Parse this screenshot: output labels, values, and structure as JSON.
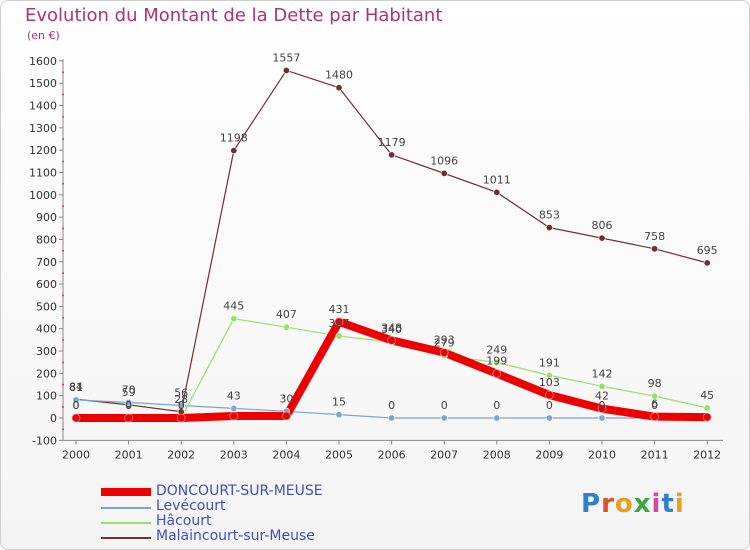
{
  "header": {
    "title": "Evolution du Montant de la Dette par Habitant",
    "unit": "(en €)"
  },
  "logo": {
    "text": "Proxiti"
  },
  "colors": {
    "title": "#b0336a",
    "doncourt": "#ee0000",
    "levecourt": "#7aa6cc",
    "hacourt": "#99e066",
    "malaincourt": "#703030"
  },
  "chart_data": {
    "type": "line",
    "title": "Evolution du Montant de la Dette par Habitant",
    "ylabel": "(en €)",
    "x": [
      "2000",
      "2001",
      "2002",
      "2003",
      "2004",
      "2005",
      "2006",
      "2007",
      "2008",
      "2009",
      "2010",
      "2011",
      "2012"
    ],
    "ylim": [
      -100,
      1600
    ],
    "yticks": [
      -100,
      0,
      100,
      200,
      300,
      400,
      500,
      600,
      700,
      800,
      900,
      1000,
      1100,
      1200,
      1300,
      1400,
      1500,
      1600
    ],
    "grid": false,
    "series": [
      {
        "key": "doncourt",
        "name": "DONCOURT-SUR-MEUSE",
        "values": [
          0,
          0,
          0,
          9,
          9,
          431,
          348,
          293,
          199,
          103,
          42,
          6,
          4
        ],
        "labels": [
          "0",
          "0",
          "0",
          "",
          "",
          "431",
          "348",
          "293",
          "199",
          "103",
          "42",
          "6",
          ""
        ]
      },
      {
        "key": "levecourt",
        "name": "Levécourt",
        "values": [
          81,
          70,
          56,
          43,
          30,
          15,
          0,
          0,
          0,
          0,
          0,
          0,
          0
        ],
        "labels": [
          "81",
          "70",
          "56",
          "43",
          "30",
          "15",
          "0",
          "0",
          "0",
          "0",
          "0",
          "0",
          ""
        ]
      },
      {
        "key": "hacourt",
        "name": "Hâcourt",
        "values": [
          0,
          0,
          0,
          445,
          407,
          367,
          340,
          279,
          249,
          191,
          142,
          98,
          45
        ],
        "labels": [
          "0",
          "0",
          "0",
          "445",
          "407",
          "367",
          "340",
          "279",
          "249",
          "191",
          "142",
          "98",
          "45"
        ]
      },
      {
        "key": "malaincourt",
        "name": "Malaincourt-sur-Meuse",
        "values": [
          84,
          59,
          28,
          1198,
          1557,
          1480,
          1179,
          1096,
          1011,
          853,
          806,
          758,
          695
        ],
        "labels": [
          "84",
          "59",
          "28",
          "1198",
          "1557",
          "1480",
          "1179",
          "1096",
          "1011",
          "853",
          "806",
          "758",
          "695"
        ]
      }
    ]
  }
}
